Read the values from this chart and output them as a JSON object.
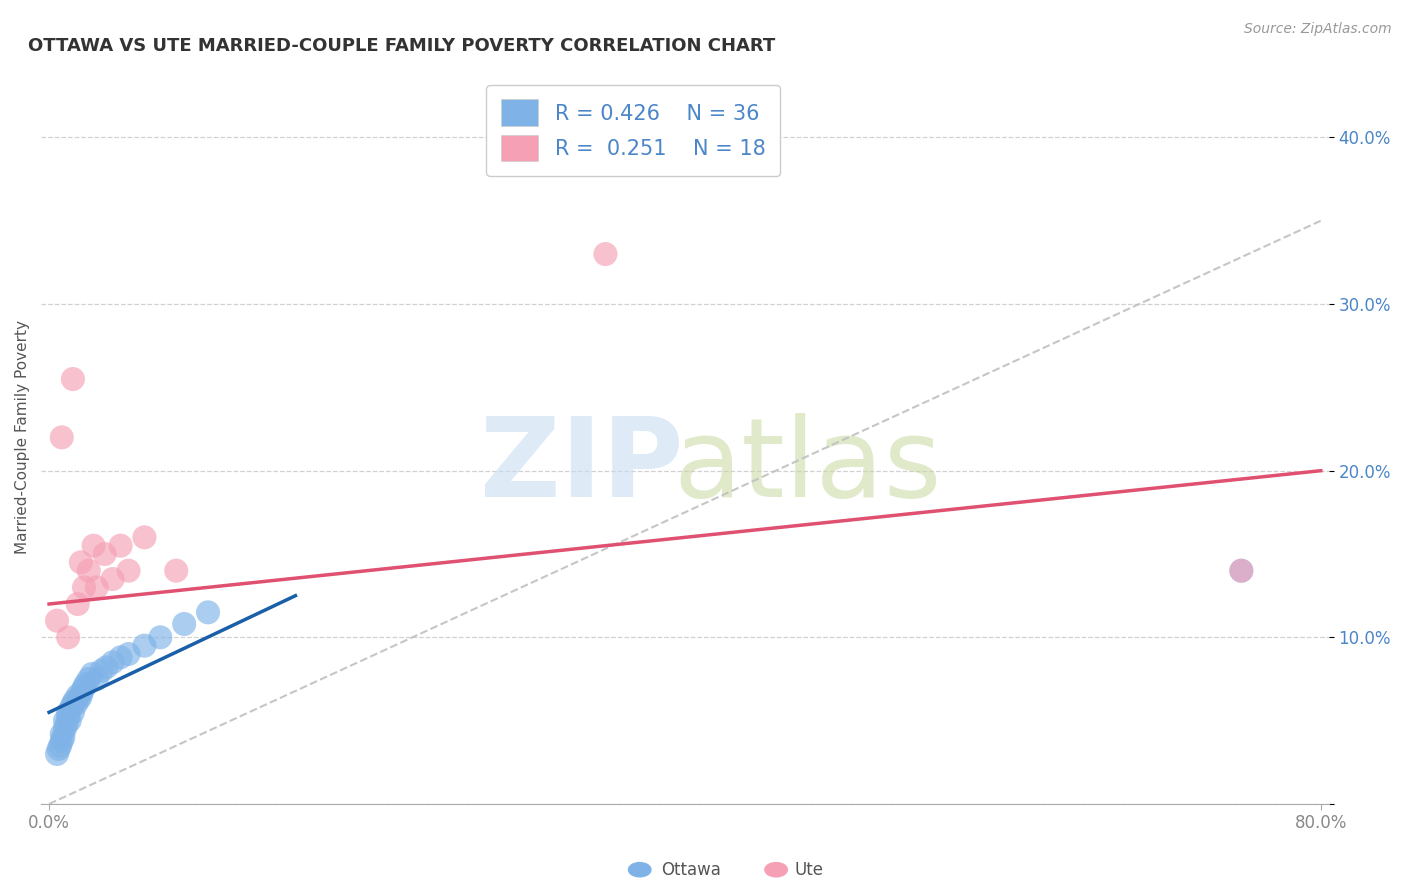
{
  "title": "OTTAWA VS UTE MARRIED-COUPLE FAMILY POVERTY CORRELATION CHART",
  "source": "Source: ZipAtlas.com",
  "ylabel": "Married-Couple Family Poverty",
  "xlim": [
    -0.005,
    0.805
  ],
  "ylim": [
    0,
    0.44
  ],
  "ottawa_R": 0.426,
  "ottawa_N": 36,
  "ute_R": 0.251,
  "ute_N": 18,
  "ottawa_color": "#7fb3e8",
  "ute_color": "#f5a0b5",
  "ottawa_line_color": "#1a5fa8",
  "ute_line_color": "#e05070",
  "overall_line_color": "#c0c0c0",
  "background_color": "#ffffff",
  "legend_Ottawa": "Ottawa",
  "legend_Ute": "Ute",
  "ottawa_x": [
    0.005,
    0.006,
    0.007,
    0.008,
    0.008,
    0.009,
    0.01,
    0.01,
    0.011,
    0.012,
    0.012,
    0.013,
    0.014,
    0.015,
    0.015,
    0.016,
    0.017,
    0.018,
    0.019,
    0.02,
    0.021,
    0.022,
    0.023,
    0.025,
    0.027,
    0.03,
    0.033,
    0.036,
    0.04,
    0.045,
    0.05,
    0.06,
    0.07,
    0.085,
    0.1,
    0.75
  ],
  "ottawa_y": [
    0.03,
    0.033,
    0.035,
    0.038,
    0.042,
    0.04,
    0.045,
    0.05,
    0.048,
    0.052,
    0.055,
    0.05,
    0.058,
    0.055,
    0.06,
    0.062,
    0.06,
    0.065,
    0.063,
    0.065,
    0.068,
    0.07,
    0.072,
    0.075,
    0.078,
    0.075,
    0.08,
    0.082,
    0.085,
    0.088,
    0.09,
    0.095,
    0.1,
    0.108,
    0.115,
    0.14
  ],
  "ute_x": [
    0.005,
    0.008,
    0.012,
    0.015,
    0.018,
    0.02,
    0.022,
    0.025,
    0.028,
    0.03,
    0.035,
    0.04,
    0.045,
    0.05,
    0.06,
    0.08,
    0.35,
    0.75
  ],
  "ute_y": [
    0.11,
    0.22,
    0.1,
    0.255,
    0.12,
    0.145,
    0.13,
    0.14,
    0.155,
    0.13,
    0.15,
    0.135,
    0.155,
    0.14,
    0.16,
    0.14,
    0.33,
    0.14
  ],
  "gray_line_x": [
    0.0,
    0.8
  ],
  "gray_line_y": [
    0.0,
    0.35
  ],
  "ute_line_x": [
    0.0,
    0.8
  ],
  "ute_line_y": [
    0.12,
    0.2
  ],
  "ottawa_line_x": [
    0.0,
    0.155
  ],
  "ottawa_line_y": [
    0.055,
    0.125
  ]
}
